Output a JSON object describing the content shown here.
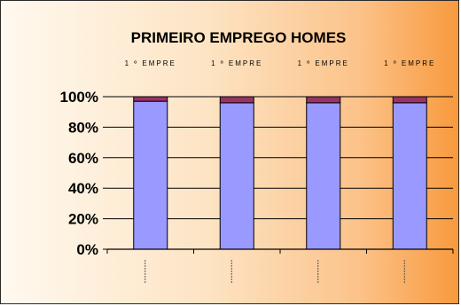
{
  "chart_data": {
    "type": "bar",
    "stacked": true,
    "normalized_percent": true,
    "title": "PRIMEIRO EMPREGO HOMES",
    "xlabel": "",
    "ylabel": "",
    "ylim": [
      0,
      100
    ],
    "y_ticks": [
      "0%",
      "20%",
      "40%",
      "60%",
      "80%",
      "100%"
    ],
    "y_tick_values": [
      0,
      20,
      40,
      60,
      80,
      100
    ],
    "categories": [
      "",
      "",
      "",
      ""
    ],
    "series": [
      {
        "values": [
          97,
          96,
          96,
          96
        ],
        "color": "#9999ff"
      },
      {
        "values": [
          3,
          4,
          4,
          4
        ],
        "color": "#993366"
      }
    ],
    "data_labels": [
      "1 º EMPRE",
      "1 º EMPRE",
      "1 º EMPRE",
      "1 º EMPRE"
    ],
    "grid": true,
    "legend": "none"
  },
  "colors": {
    "background_start": "#fff9ef",
    "background_end": "#f89a3e",
    "border": "#2a2a2a"
  }
}
